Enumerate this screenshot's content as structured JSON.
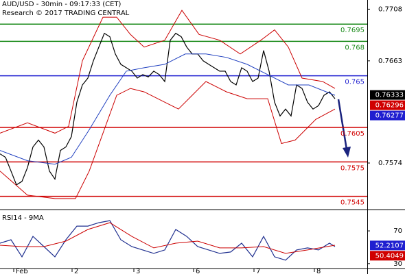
{
  "chart_data": [
    {
      "type": "line",
      "title": "AUD/USD - 30min - 09:17:33 (CET)",
      "subtitle": "Research © 2017 TRADING CENTRAL",
      "xlim": [
        0,
        133.75
      ],
      "ylim": [
        0.7537,
        0.7716
      ],
      "yticks": [
        0.7708,
        0.7663,
        0.7574
      ],
      "series": [
        {
          "color": "#000000",
          "x": [
            0,
            2,
            4,
            6,
            8,
            10,
            12,
            14,
            16,
            18,
            20,
            22,
            24,
            26,
            28,
            30,
            32,
            34,
            36,
            38,
            40,
            42,
            44,
            46,
            48,
            50,
            52,
            54,
            56,
            58,
            60,
            62,
            64,
            66,
            68,
            70,
            72,
            74,
            76,
            78,
            80,
            82,
            84,
            86,
            88,
            90,
            92,
            94,
            96,
            98,
            100,
            102,
            104,
            106,
            108,
            110,
            112,
            114,
            116,
            118,
            120,
            122
          ],
          "values": [
            0.7582,
            0.7579,
            0.7567,
            0.7555,
            0.7558,
            0.757,
            0.7588,
            0.7594,
            0.7588,
            0.7567,
            0.756,
            0.7585,
            0.7588,
            0.7597,
            0.7627,
            0.7642,
            0.7648,
            0.7663,
            0.7675,
            0.7687,
            0.7684,
            0.7669,
            0.766,
            0.7657,
            0.7654,
            0.7648,
            0.7651,
            0.7649,
            0.7654,
            0.7651,
            0.7645,
            0.7681,
            0.7687,
            0.7684,
            0.7675,
            0.7669,
            0.7669,
            0.7663,
            0.766,
            0.7657,
            0.7654,
            0.7654,
            0.7645,
            0.7642,
            0.7657,
            0.7654,
            0.7645,
            0.7648,
            0.7672,
            0.7654,
            0.7627,
            0.7615,
            0.7621,
            0.7615,
            0.7642,
            0.7639,
            0.7627,
            0.7621,
            0.7624,
            0.7633,
            0.7636,
            0.763
          ]
        },
        {
          "color": "#1f3fbf",
          "x": [
            0,
            10,
            20,
            26,
            32.5,
            40,
            46,
            52.5,
            60,
            67.5,
            75,
            82.5,
            90,
            97.5,
            105,
            112.5,
            122
          ],
          "values": [
            0.7585,
            0.7576,
            0.7573,
            0.7579,
            0.7603,
            0.7633,
            0.7654,
            0.7657,
            0.766,
            0.7669,
            0.7669,
            0.7666,
            0.766,
            0.7651,
            0.7642,
            0.7642,
            0.7633
          ]
        },
        {
          "color": "#cc0000",
          "x": [
            0,
            10,
            20,
            25,
            30,
            37.5,
            42.5,
            47.5,
            52.5,
            60,
            66.25,
            72.5,
            80,
            87.5,
            95,
            100,
            105,
            110,
            117.5,
            122
          ],
          "values": [
            0.76,
            0.7609,
            0.76,
            0.7606,
            0.7663,
            0.7701,
            0.7701,
            0.7686,
            0.7675,
            0.7681,
            0.7707,
            0.7686,
            0.7681,
            0.7669,
            0.7681,
            0.769,
            0.7675,
            0.7648,
            0.7645,
            0.7639
          ]
        },
        {
          "color": "#cc0000",
          "x": [
            0,
            10,
            20,
            27.5,
            32.5,
            37.5,
            42.5,
            47.5,
            52.5,
            60,
            65,
            70,
            75,
            82.5,
            90,
            97.5,
            102.5,
            107.5,
            115,
            122
          ],
          "values": [
            0.7567,
            0.7546,
            0.7543,
            0.7543,
            0.7567,
            0.76,
            0.7633,
            0.7639,
            0.7636,
            0.7627,
            0.7621,
            0.7633,
            0.7645,
            0.7636,
            0.763,
            0.763,
            0.7591,
            0.7594,
            0.7612,
            0.7621
          ]
        }
      ],
      "levels": [
        {
          "value": 0.7695,
          "color": "#1a8a1a"
        },
        {
          "value": 0.768,
          "color": "#1a8a1a"
        },
        {
          "value": 0.765,
          "color": "#1f1fd0"
        },
        {
          "value": 0.7605,
          "color": "#d00000"
        },
        {
          "value": 0.7575,
          "color": "#d00000"
        },
        {
          "value": 0.7545,
          "color": "#d00000"
        }
      ],
      "readouts": [
        {
          "value": 0.76333,
          "color": "#000000"
        },
        {
          "value": 0.76296,
          "color": "#d00000"
        },
        {
          "value": 0.76277,
          "color": "#1f1fd0"
        }
      ]
    },
    {
      "type": "line",
      "title": "RSI14 - 9MA",
      "xlim": [
        0,
        133.75
      ],
      "ylim": [
        24,
        91
      ],
      "yticks": [
        70,
        30
      ],
      "xticks": [
        {
          "value": 5,
          "label": "Feb"
        },
        {
          "value": 26.25,
          "label": "2"
        },
        {
          "value": 48.75,
          "label": "3"
        },
        {
          "value": 70.5,
          "label": "6"
        },
        {
          "value": 92.5,
          "label": "7"
        },
        {
          "value": 114.5,
          "label": "8"
        }
      ],
      "series": [
        {
          "color": "#1f2f8f",
          "x": [
            0,
            4,
            8,
            12,
            16,
            20,
            24,
            28,
            32,
            36,
            40,
            44,
            48,
            52,
            56,
            60,
            64,
            68,
            72,
            76,
            80,
            84,
            88,
            92,
            96,
            100,
            104,
            108,
            112,
            116,
            120,
            122
          ],
          "values": [
            55,
            59.2,
            38.3,
            63.3,
            50.8,
            38.3,
            59.2,
            75.8,
            75.8,
            80,
            82.5,
            59.2,
            50.8,
            46.7,
            42.5,
            46.7,
            71.7,
            63.3,
            50.8,
            46.7,
            42.5,
            44.2,
            55,
            38.3,
            63.3,
            38.3,
            34.2,
            46.7,
            49.2,
            46.7,
            55,
            50.8
          ]
        },
        {
          "color": "#cc0000",
          "x": [
            0,
            8,
            16,
            24,
            32,
            40,
            48,
            56,
            64,
            72,
            80,
            88,
            96,
            104,
            112,
            122
          ],
          "values": [
            52.5,
            50.8,
            50.8,
            57.5,
            71.7,
            80,
            63.3,
            49.2,
            55,
            57.5,
            49.2,
            49.2,
            50.8,
            42.5,
            46.7,
            52.5
          ]
        }
      ],
      "readouts": [
        {
          "value": 52.2107,
          "color": "#1f1fd0"
        },
        {
          "value": 50.4049,
          "color": "#d00000"
        }
      ]
    }
  ]
}
